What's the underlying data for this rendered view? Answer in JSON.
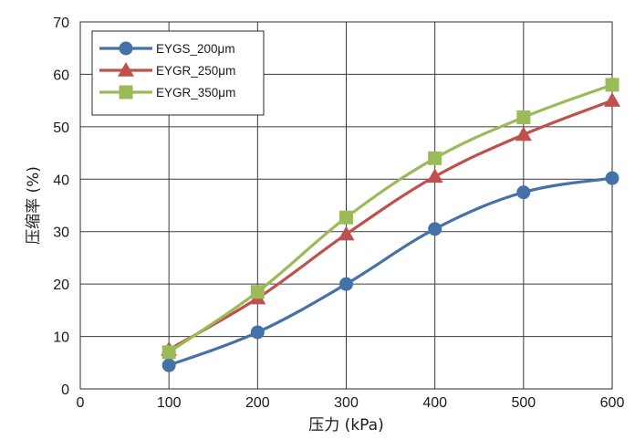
{
  "chart_data": {
    "type": "line",
    "title": "",
    "xlabel": "压力 (kPa)",
    "ylabel": "压缩率 (%)",
    "xlim": [
      0,
      600
    ],
    "ylim": [
      0,
      70
    ],
    "xticks": [
      0,
      100,
      200,
      300,
      400,
      500,
      600
    ],
    "yticks": [
      0,
      10,
      20,
      30,
      40,
      50,
      60,
      70
    ],
    "grid": true,
    "legend_position": "top-left",
    "x": [
      100,
      200,
      300,
      400,
      500,
      600
    ],
    "series": [
      {
        "name": "EYGS_200μm",
        "values": [
          4.5,
          10.8,
          20.0,
          30.5,
          37.5,
          40.2
        ],
        "color": "#4472a8",
        "marker": "circle"
      },
      {
        "name": "EYGR_250μm",
        "values": [
          7.5,
          17.3,
          29.5,
          40.5,
          48.5,
          55.0
        ],
        "color": "#c0504d",
        "marker": "triangle"
      },
      {
        "name": "EYGR_350μm",
        "values": [
          7.0,
          18.5,
          32.7,
          44.0,
          51.8,
          58.0
        ],
        "color": "#9bbb59",
        "marker": "square"
      }
    ]
  }
}
